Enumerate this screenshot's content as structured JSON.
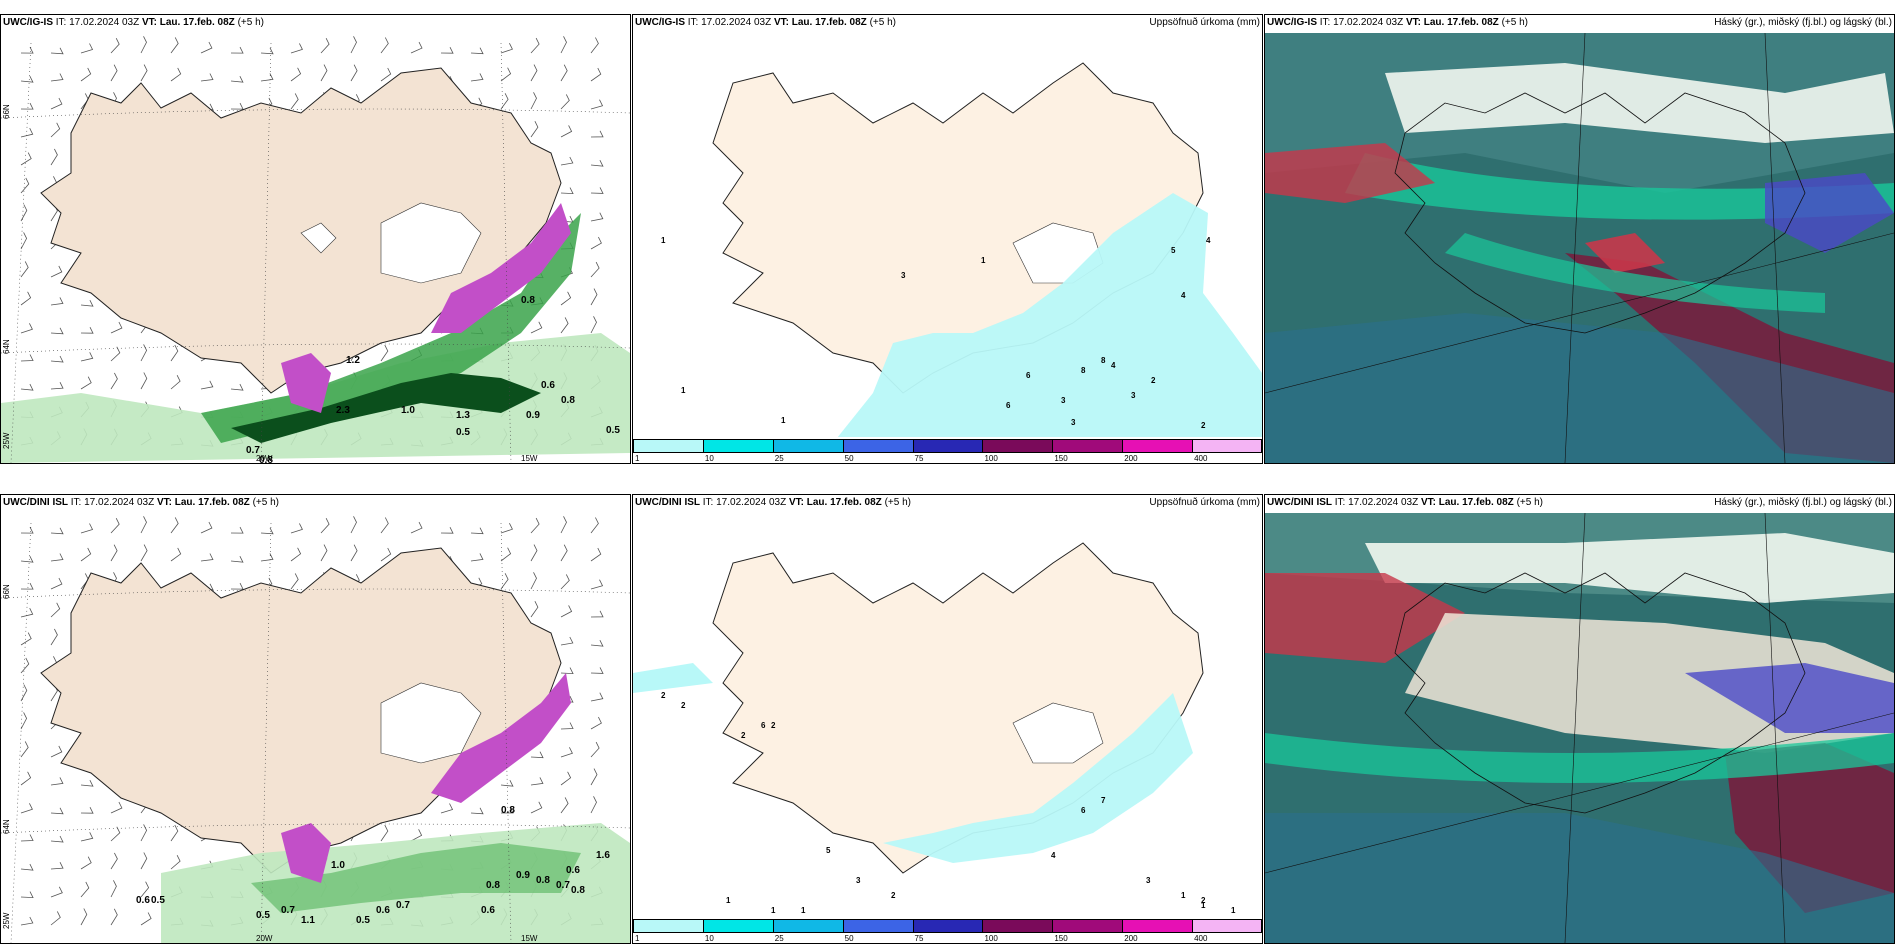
{
  "panels": [
    {
      "model": "UWC/IG-IS",
      "it_label": "IT:",
      "it": "17.02.2024 03Z",
      "vt_label": "VT:",
      "vt": "Lau. 17.feb. 08Z",
      "lead": "(+5 h)",
      "right": ""
    },
    {
      "model": "UWC/IG-IS",
      "it_label": "IT:",
      "it": "17.02.2024 03Z",
      "vt_label": "VT:",
      "vt": "Lau. 17.feb. 08Z",
      "lead": "(+5 h)",
      "right": "Uppsöfnuð úrkoma (mm)"
    },
    {
      "model": "UWC/IG-IS",
      "it_label": "IT:",
      "it": "17.02.2024 03Z",
      "vt_label": "VT:",
      "vt": "Lau. 17.feb. 08Z",
      "lead": "(+5 h)",
      "right": "Háský (gr.), miðský (fj.bl.) og lágský (bl.)"
    },
    {
      "model": "UWC/DINI ISL",
      "it_label": "IT:",
      "it": "17.02.2024 03Z",
      "vt_label": "VT:",
      "vt": "Lau. 17.feb. 08Z",
      "lead": "(+5 h)",
      "right": ""
    },
    {
      "model": "UWC/DINI ISL",
      "it_label": "IT:",
      "it": "17.02.2024 03Z",
      "vt_label": "VT:",
      "vt": "Lau. 17.feb. 08Z",
      "lead": "(+5 h)",
      "right": "Uppsöfnuð úrkoma (mm)"
    },
    {
      "model": "UWC/DINI ISL",
      "it_label": "IT:",
      "it": "17.02.2024 03Z",
      "vt_label": "VT:",
      "vt": "Lau. 17.feb. 08Z",
      "lead": "(+5 h)",
      "right": "Háský (gr.), miðský (fj.bl.) og lágský (bl.)"
    }
  ],
  "colorbar": {
    "labels": [
      "1",
      "10",
      "25",
      "50",
      "75",
      "100",
      "150",
      "200",
      "400"
    ],
    "colors": [
      "#b8f8f8",
      "#00e6e6",
      "#10b8e6",
      "#3c64e6",
      "#2828b4",
      "#7a0a5a",
      "#a00a7a",
      "#e610b4",
      "#f4b4f4"
    ]
  },
  "grid_labels": {
    "lat66": "66N",
    "lat64": "64N",
    "lon25": "25W",
    "lon20": "20W",
    "lon15": "15W"
  },
  "precip_values_top": [
    "0.7",
    "0.8",
    "2.3",
    "1.2",
    "0.5",
    "0.6",
    "0.8",
    "0.9",
    "0.5",
    "1.0",
    "1.3",
    "0.8"
  ],
  "precip_values_bottom": [
    "0.6",
    "0.5",
    "0.5",
    "0.7",
    "1.1",
    "0.5",
    "0.6",
    "0.7",
    "0.8",
    "0.6",
    "0.8",
    "0.9",
    "0.8",
    "0.7",
    "0.6",
    "1.0",
    "0.8",
    "1.6"
  ],
  "accum_values_top": [
    "1",
    "1",
    "1",
    "1",
    "3",
    "4",
    "6",
    "6",
    "8",
    "8",
    "2",
    "3",
    "3",
    "3",
    "4",
    "5",
    "2",
    "4"
  ],
  "accum_values_bottom": [
    "2",
    "2",
    "2",
    "6",
    "2",
    "1",
    "1",
    "1",
    "5",
    "3",
    "2",
    "4",
    "6",
    "7",
    "3",
    "2",
    "1",
    "1",
    "1"
  ],
  "colors": {
    "land": "#f3e3d3",
    "land_light": "#fdf1e3",
    "precip_light": "#bfe8bf",
    "precip_mid": "#3aa34a",
    "precip_dark": "#0b4f1c",
    "snow": "#c24fc8",
    "precip_cyan": "#b8f8f8"
  }
}
